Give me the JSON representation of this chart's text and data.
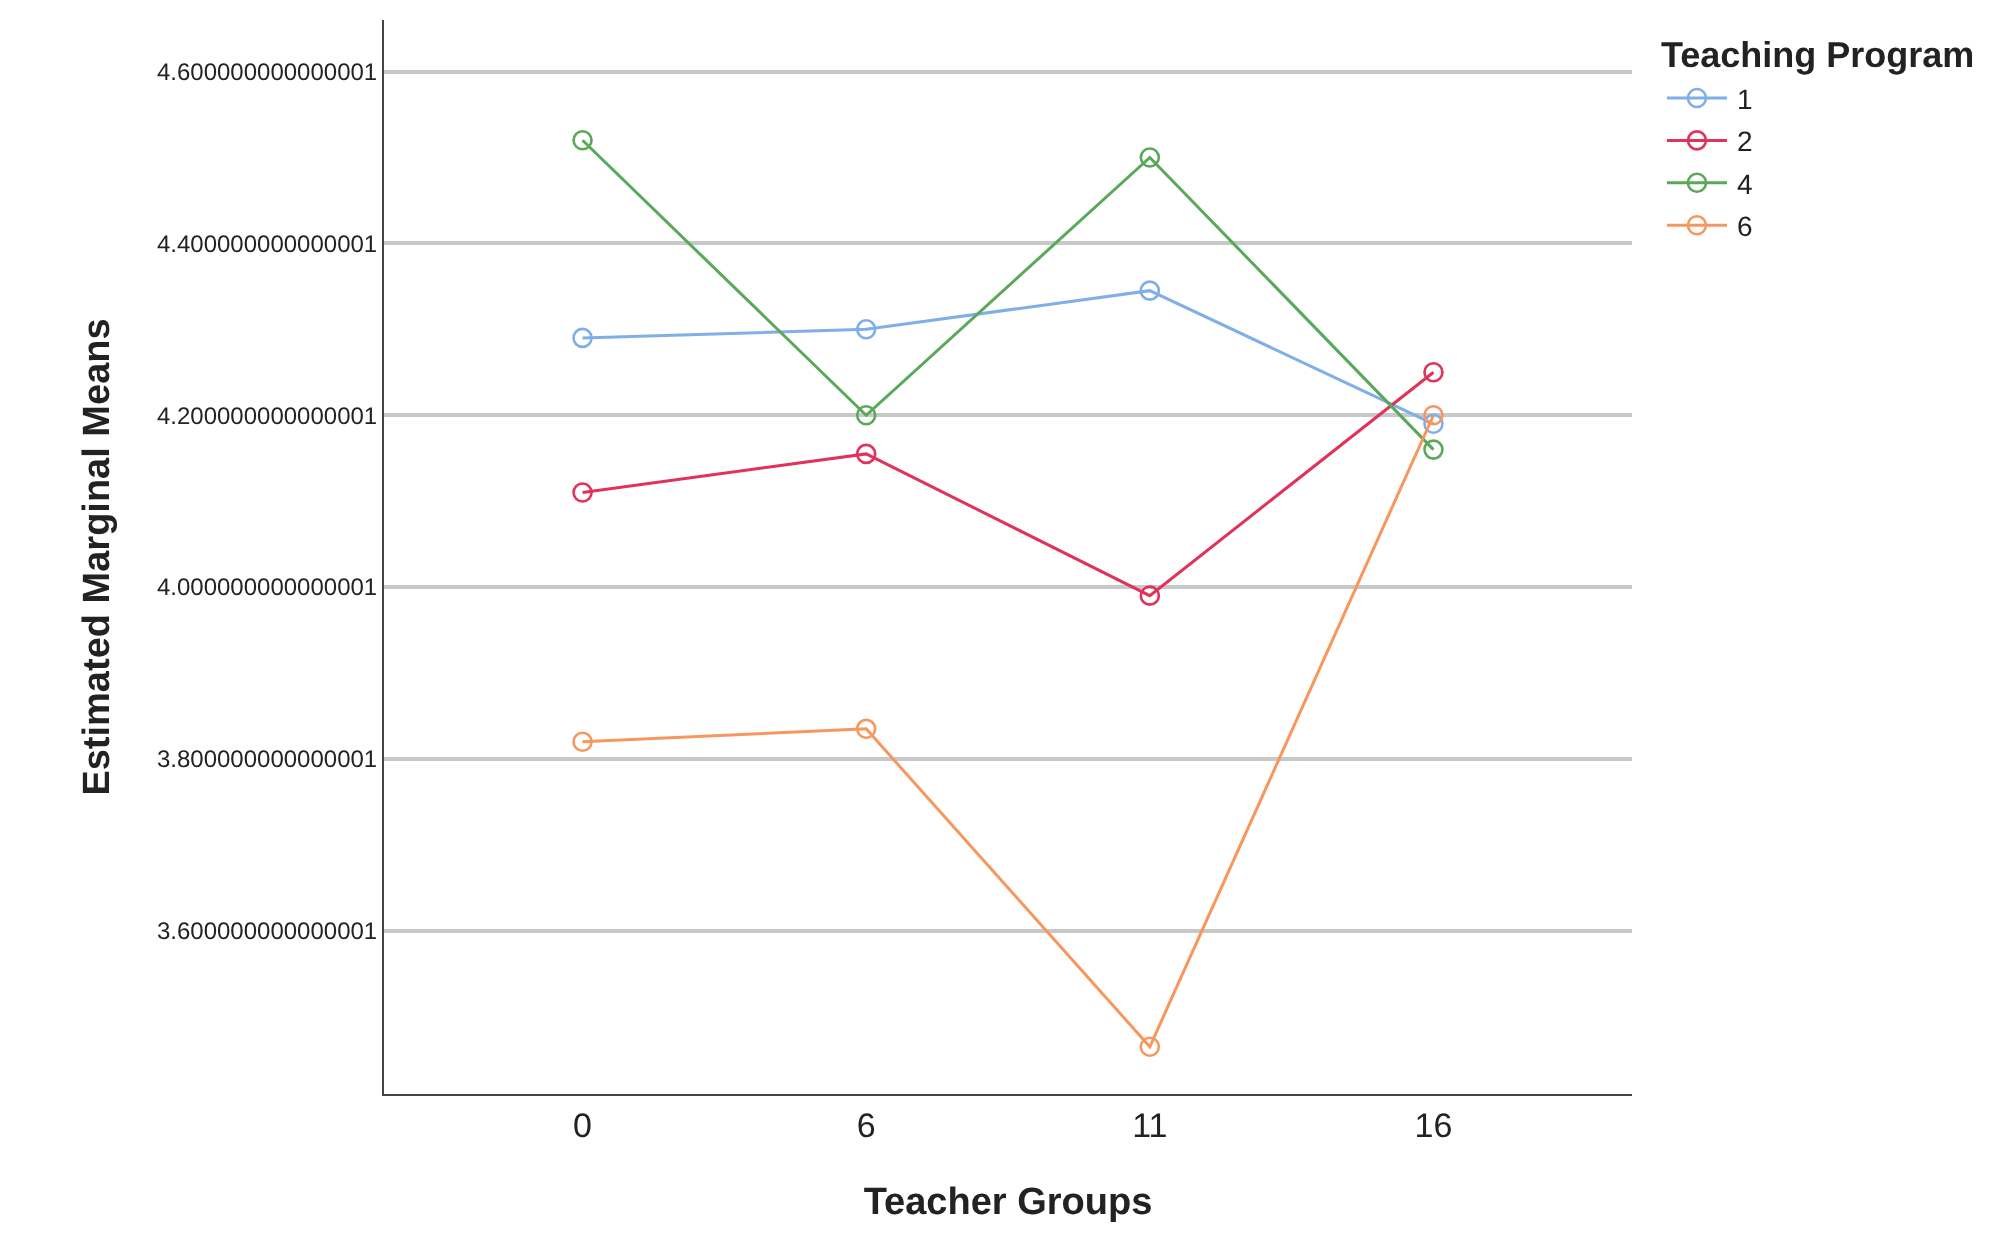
{
  "chart_data": {
    "type": "line",
    "xlabel": "Teacher Groups",
    "ylabel": "Estimated Marginal Means",
    "legend_title": "Teaching Program",
    "categories": [
      "0",
      "6",
      "11",
      "16"
    ],
    "series": [
      {
        "name": "1",
        "color": "#7faee8",
        "values": [
          4.29,
          4.3,
          4.345,
          4.19
        ]
      },
      {
        "name": "2",
        "color": "#e0325a",
        "values": [
          4.11,
          4.155,
          3.99,
          4.25
        ]
      },
      {
        "name": "4",
        "color": "#5aa85a",
        "values": [
          4.52,
          4.2,
          4.5,
          4.16
        ]
      },
      {
        "name": "6",
        "color": "#f7975e",
        "values": [
          3.82,
          3.835,
          3.465,
          4.2
        ]
      }
    ],
    "ylim": [
      3.41,
      4.66
    ],
    "yticks": [
      {
        "value": 3.6,
        "label": "3.600000000000001"
      },
      {
        "value": 3.8,
        "label": "3.800000000000001"
      },
      {
        "value": 4.0,
        "label": "4.000000000000001"
      },
      {
        "value": 4.2,
        "label": "4.200000000000001"
      },
      {
        "value": 4.4,
        "label": "4.400000000000001"
      },
      {
        "value": 4.6,
        "label": "4.600000000000001"
      }
    ],
    "grid": "y",
    "legend": "top right",
    "marker": "circle",
    "line_style": "solid"
  }
}
